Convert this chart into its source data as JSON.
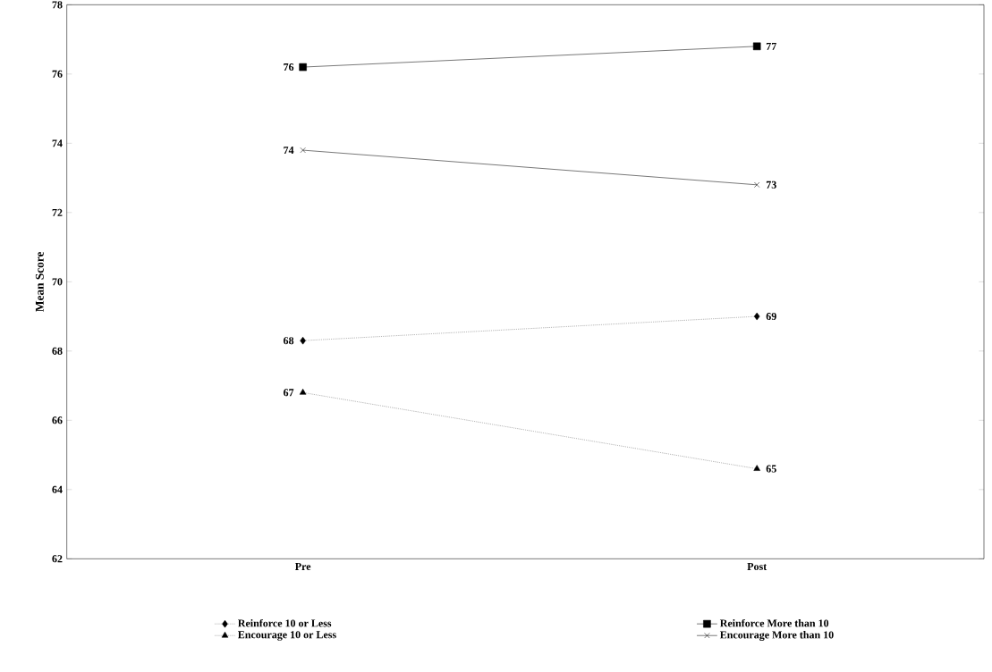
{
  "chart_data": {
    "type": "line",
    "ylabel": "Mean Score",
    "categories": [
      "Pre",
      "Post"
    ],
    "series": [
      {
        "name": "Reinforce 10 or Less",
        "color": "#000000",
        "values": [
          68.3,
          69.0
        ],
        "value_labels": [
          "68",
          "69"
        ],
        "marker": "diamond",
        "line_style": "dotted"
      },
      {
        "name": "Reinforce More than 10",
        "color": "#000000",
        "values": [
          76.2,
          76.8
        ],
        "value_labels": [
          "76",
          "77"
        ],
        "marker": "square",
        "line_style": "solid"
      },
      {
        "name": "Encourage 10 or Less",
        "color": "#000000",
        "values": [
          66.8,
          64.6
        ],
        "value_labels": [
          "67",
          "65"
        ],
        "marker": "triangle",
        "line_style": "dotted"
      },
      {
        "name": "Encourage More than 10",
        "color": "#000000",
        "values": [
          73.8,
          72.8
        ],
        "value_labels": [
          "74",
          "73"
        ],
        "marker": "cross",
        "line_style": "solid"
      }
    ],
    "ylim": [
      62,
      78
    ],
    "yticks": [
      62,
      64,
      66,
      68,
      70,
      72,
      74,
      76,
      78
    ],
    "grid": false,
    "legend": "bottom"
  }
}
